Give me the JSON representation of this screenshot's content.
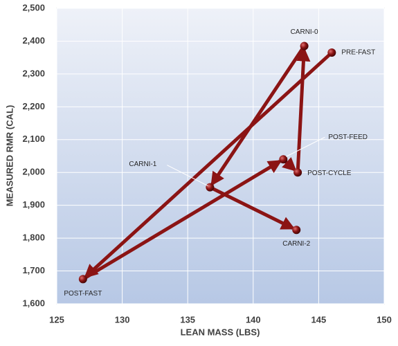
{
  "chart_data": {
    "type": "scatter",
    "x_label": "LEAN MASS (LBS)",
    "y_label": "MEASURED RMR (CAL)",
    "labels": [
      "PRE-FAST",
      "POST-FAST",
      "POST-FEED",
      "POST-CYCLE",
      "CARNI-0",
      "CARNI-1",
      "CARNI-2"
    ],
    "x": [
      146.0,
      127.0,
      142.3,
      143.4,
      143.9,
      136.7,
      143.3
    ],
    "values": [
      2365,
      1675,
      2040,
      2000,
      2385,
      1955,
      1825
    ],
    "color": "#8b1414",
    "xlim": [
      125,
      150
    ],
    "xticks": [
      125,
      130,
      135,
      140,
      145,
      150
    ],
    "ylim": [
      1600,
      2500
    ],
    "yticks": [
      {
        "value": 1600,
        "label": "1,600"
      },
      {
        "value": 1700,
        "label": "1,700"
      },
      {
        "value": 1800,
        "label": "1,800"
      },
      {
        "value": 1900,
        "label": "1,900"
      },
      {
        "value": 2000,
        "label": "2,000"
      },
      {
        "value": 2100,
        "label": "2,100"
      },
      {
        "value": 2200,
        "label": "2,200"
      },
      {
        "value": 2300,
        "label": "2,300"
      },
      {
        "value": 2400,
        "label": "2,400"
      },
      {
        "value": 2500,
        "label": "2,500"
      }
    ],
    "grid": true
  }
}
